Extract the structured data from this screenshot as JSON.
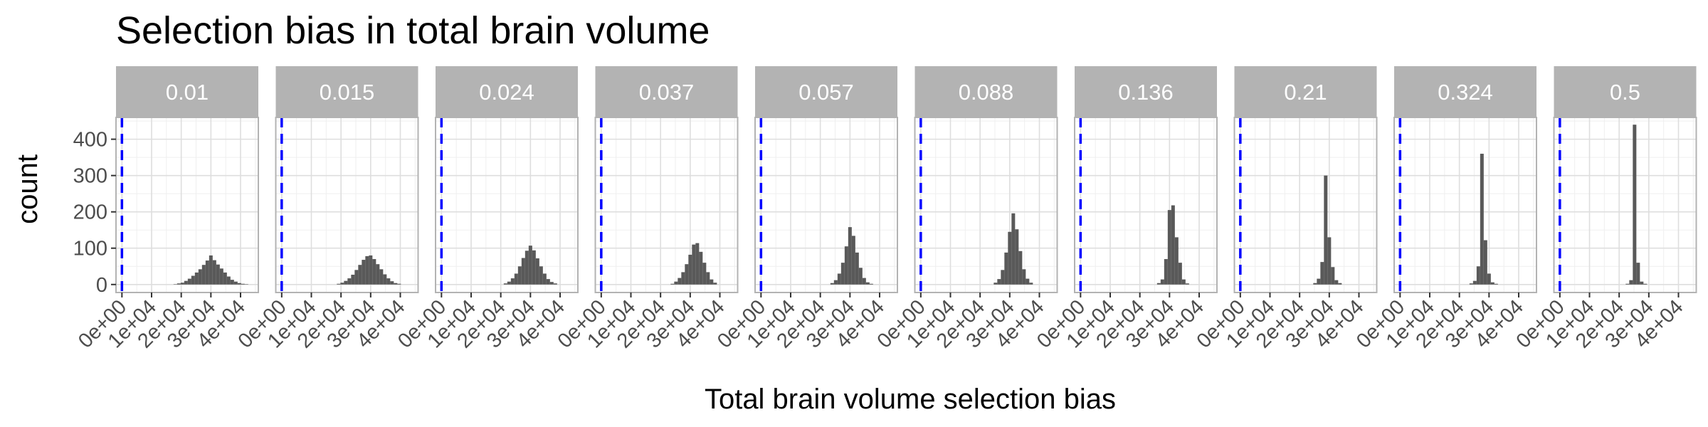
{
  "chart_data": {
    "type": "bar",
    "title": "Selection bias in total brain volume",
    "xlabel": "Total brain volume selection bias",
    "ylabel": "count",
    "xlim": [
      -2000,
      46000
    ],
    "ylim": [
      -22,
      460
    ],
    "x_ticks": [
      0,
      10000,
      20000,
      30000,
      40000
    ],
    "x_tick_labels": [
      "0e+00",
      "1e+04",
      "2e+04",
      "3e+04",
      "4e+04"
    ],
    "y_ticks": [
      0,
      100,
      200,
      300,
      400
    ],
    "y_tick_labels": [
      "0",
      "100",
      "200",
      "300",
      "400"
    ],
    "reference_line": {
      "x": 0,
      "color": "#0000ff",
      "style": "dashed"
    },
    "grid": true,
    "colors": {
      "bar": "#595959",
      "strip": "#b3b3b3",
      "strip_text": "#ffffff",
      "panel_border": "#b3b3b3",
      "grid_major": "#dedede",
      "grid_minor": "#efefef",
      "tick_text": "#4d4d4d",
      "reference": "#0000ff"
    },
    "bin_width": 1200,
    "panels": [
      {
        "label": "0.01",
        "bins": [
          [
            18000,
            1
          ],
          [
            19200,
            3
          ],
          [
            20400,
            5
          ],
          [
            21600,
            10
          ],
          [
            22800,
            16
          ],
          [
            24000,
            24
          ],
          [
            25200,
            33
          ],
          [
            26400,
            42
          ],
          [
            27600,
            54
          ],
          [
            28800,
            66
          ],
          [
            30000,
            80
          ],
          [
            31200,
            67
          ],
          [
            32400,
            55
          ],
          [
            33600,
            44
          ],
          [
            34800,
            33
          ],
          [
            36000,
            22
          ],
          [
            37200,
            13
          ],
          [
            38400,
            8
          ],
          [
            39600,
            4
          ],
          [
            40800,
            2
          ],
          [
            42000,
            1
          ]
        ]
      },
      {
        "label": "0.015",
        "bins": [
          [
            19200,
            2
          ],
          [
            20400,
            5
          ],
          [
            21600,
            10
          ],
          [
            22800,
            17
          ],
          [
            24000,
            27
          ],
          [
            25200,
            40
          ],
          [
            26400,
            54
          ],
          [
            27600,
            68
          ],
          [
            28800,
            78
          ],
          [
            30000,
            80
          ],
          [
            31200,
            70
          ],
          [
            32400,
            56
          ],
          [
            33600,
            42
          ],
          [
            34800,
            28
          ],
          [
            36000,
            17
          ],
          [
            37200,
            9
          ],
          [
            38400,
            4
          ],
          [
            39600,
            2
          ]
        ]
      },
      {
        "label": "0.024",
        "bins": [
          [
            21600,
            3
          ],
          [
            22800,
            8
          ],
          [
            24000,
            17
          ],
          [
            25200,
            30
          ],
          [
            26400,
            50
          ],
          [
            27600,
            73
          ],
          [
            28800,
            93
          ],
          [
            30000,
            107
          ],
          [
            31200,
            94
          ],
          [
            32400,
            72
          ],
          [
            33600,
            50
          ],
          [
            34800,
            30
          ],
          [
            36000,
            15
          ],
          [
            37200,
            7
          ],
          [
            38400,
            3
          ]
        ]
      },
      {
        "label": "0.037",
        "bins": [
          [
            24000,
            2
          ],
          [
            25200,
            8
          ],
          [
            26400,
            18
          ],
          [
            27600,
            34
          ],
          [
            28800,
            56
          ],
          [
            30000,
            82
          ],
          [
            31200,
            110
          ],
          [
            32400,
            114
          ],
          [
            33600,
            90
          ],
          [
            34800,
            60
          ],
          [
            36000,
            34
          ],
          [
            37200,
            14
          ],
          [
            38400,
            5
          ]
        ]
      },
      {
        "label": "0.057",
        "bins": [
          [
            24000,
            4
          ],
          [
            25200,
            12
          ],
          [
            26400,
            30
          ],
          [
            27600,
            60
          ],
          [
            28800,
            105
          ],
          [
            30000,
            158
          ],
          [
            31200,
            134
          ],
          [
            32400,
            88
          ],
          [
            33600,
            46
          ],
          [
            34800,
            18
          ],
          [
            36000,
            6
          ],
          [
            37200,
            2
          ]
        ]
      },
      {
        "label": "0.088",
        "bins": [
          [
            25200,
            5
          ],
          [
            26400,
            15
          ],
          [
            27600,
            40
          ],
          [
            28800,
            88
          ],
          [
            30000,
            145
          ],
          [
            31200,
            196
          ],
          [
            32400,
            152
          ],
          [
            33600,
            92
          ],
          [
            34800,
            42
          ],
          [
            36000,
            16
          ],
          [
            37200,
            5
          ]
        ]
      },
      {
        "label": "0.136",
        "bins": [
          [
            26400,
            4
          ],
          [
            27600,
            14
          ],
          [
            28800,
            70
          ],
          [
            30000,
            205
          ],
          [
            31200,
            218
          ],
          [
            32400,
            130
          ],
          [
            33600,
            60
          ],
          [
            34800,
            14
          ],
          [
            36000,
            3
          ]
        ]
      },
      {
        "label": "0.21",
        "bins": [
          [
            25200,
            4
          ],
          [
            26400,
            16
          ],
          [
            27600,
            62
          ],
          [
            28800,
            300
          ],
          [
            30000,
            130
          ],
          [
            31200,
            48
          ],
          [
            32400,
            12
          ],
          [
            33600,
            4
          ]
        ]
      },
      {
        "label": "0.324",
        "bins": [
          [
            24000,
            3
          ],
          [
            25200,
            10
          ],
          [
            26400,
            50
          ],
          [
            27600,
            360
          ],
          [
            28800,
            122
          ],
          [
            30000,
            30
          ],
          [
            31200,
            6
          ],
          [
            32400,
            2
          ]
        ]
      },
      {
        "label": "0.5",
        "bins": [
          [
            22800,
            2
          ],
          [
            24000,
            12
          ],
          [
            25200,
            440
          ],
          [
            26400,
            60
          ],
          [
            27600,
            8
          ],
          [
            28800,
            2
          ]
        ]
      }
    ]
  }
}
